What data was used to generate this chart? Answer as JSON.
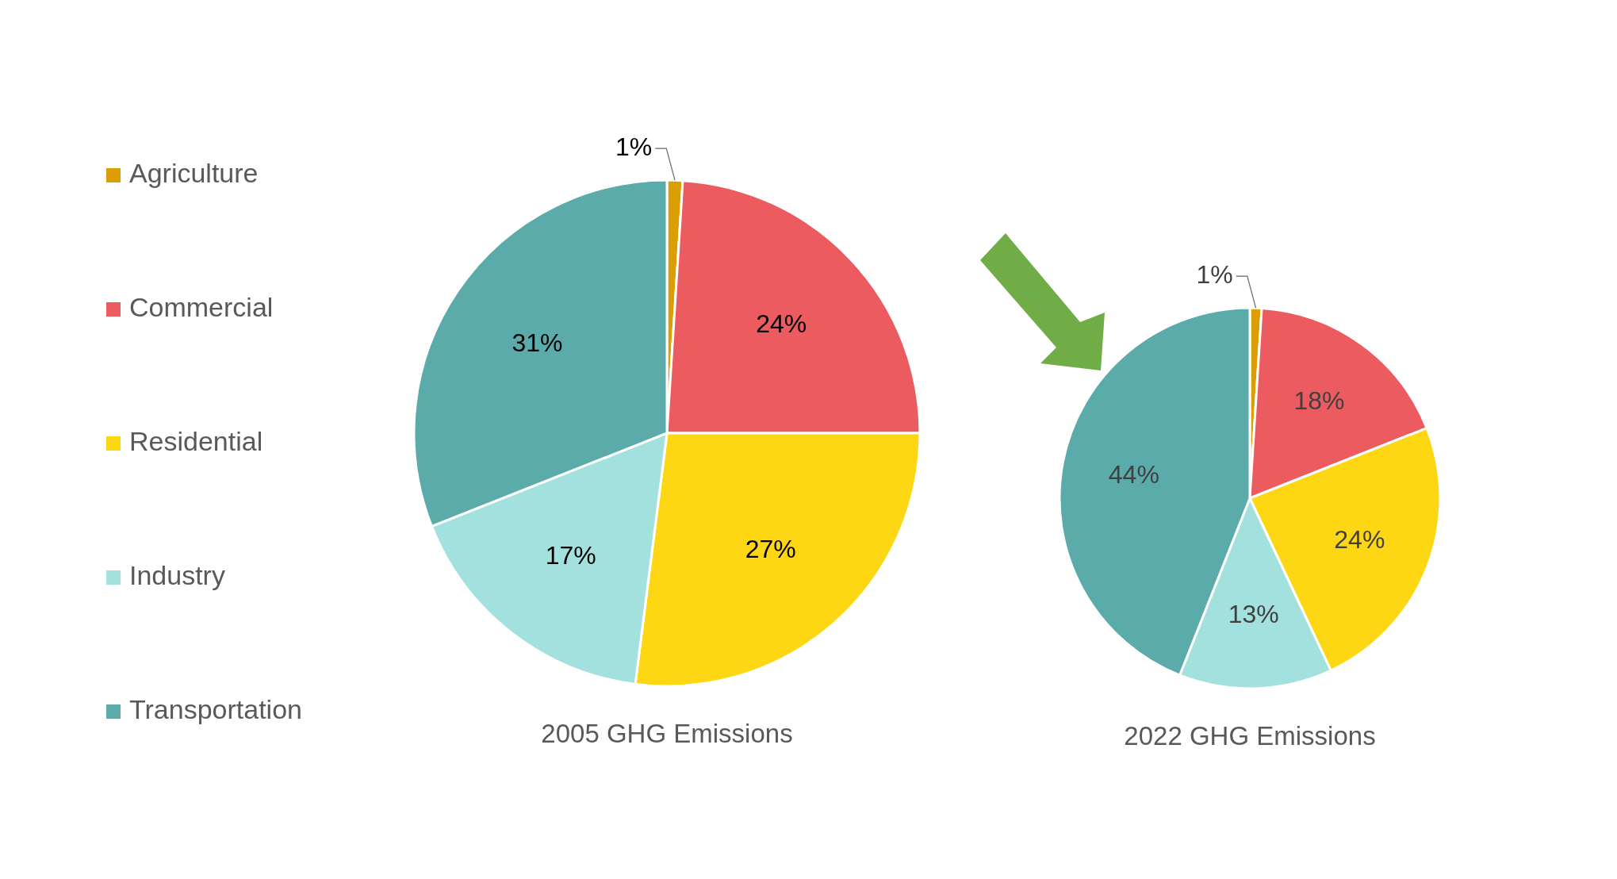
{
  "chart_data": [
    {
      "type": "pie",
      "title": "2005 GHG Emissions",
      "categories": [
        "Agriculture",
        "Commercial",
        "Residential",
        "Industry",
        "Transportation"
      ],
      "values": [
        1,
        24,
        27,
        17,
        31
      ],
      "colors": [
        "#db9e05",
        "#eb5b5f",
        "#fdd714",
        "#a3e1de",
        "#5babaa"
      ],
      "value_labels": [
        "1%",
        "24%",
        "27%",
        "17%",
        "31%"
      ],
      "legend": "left"
    },
    {
      "type": "pie",
      "title": "2022 GHG Emissions",
      "categories": [
        null,
        null,
        null,
        null,
        null
      ],
      "values": [
        1,
        18,
        24,
        13,
        44
      ],
      "colors": [
        "#db9e05",
        "#eb5b5f",
        "#fdd714",
        "#a3e1de",
        "#5babaa"
      ],
      "value_labels": [
        "1%",
        "18%",
        "24%",
        "13%",
        "44%"
      ]
    }
  ]
}
